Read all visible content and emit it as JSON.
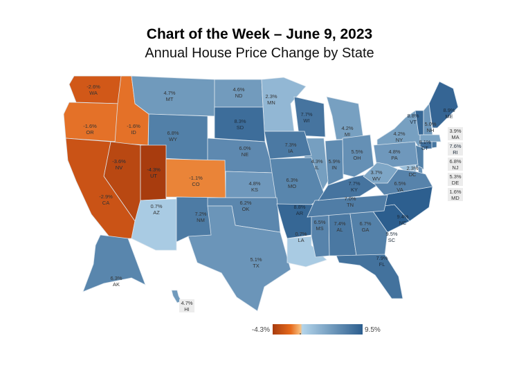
{
  "title": "Chart of the Week – June 9, 2023",
  "subtitle": "Annual House Price Change by State",
  "chart_data": {
    "type": "choropleth",
    "unit": "%",
    "legend": {
      "min_label": "-4.3%",
      "max_label": "9.5%",
      "min": -4.3,
      "max": 9.5,
      "placement": "bottom-center"
    },
    "colors": {
      "low": "#a83c0e",
      "mid_low": "#f3a14d",
      "mid_high": "#b3d4ea",
      "high": "#2c5e8e"
    },
    "states": [
      {
        "code": "WA",
        "value": -2.6,
        "label": "-2.6%"
      },
      {
        "code": "OR",
        "value": -1.6,
        "label": "-1.6%"
      },
      {
        "code": "ID",
        "value": -1.6,
        "label": "-1.6%"
      },
      {
        "code": "MT",
        "value": 4.7,
        "label": "4.7%"
      },
      {
        "code": "ND",
        "value": 4.6,
        "label": "4.6%"
      },
      {
        "code": "MN",
        "value": 2.3,
        "label": "2.3%"
      },
      {
        "code": "WI",
        "value": 7.7,
        "label": "7.7%"
      },
      {
        "code": "MI",
        "value": 4.2,
        "label": "4.2%"
      },
      {
        "code": "NY",
        "value": 4.2,
        "label": "4.2%"
      },
      {
        "code": "VT",
        "value": 8.8,
        "label": "8.8%"
      },
      {
        "code": "NH",
        "value": 5.0,
        "label": "5.0%"
      },
      {
        "code": "ME",
        "value": 8.9,
        "label": "8.9%"
      },
      {
        "code": "MA",
        "value": 3.9,
        "label": "3.9%"
      },
      {
        "code": "RI",
        "value": 7.6,
        "label": "7.6%"
      },
      {
        "code": "CT",
        "value": 8.1,
        "label": "8.1%"
      },
      {
        "code": "NJ",
        "value": 6.8,
        "label": "6.8%"
      },
      {
        "code": "DE",
        "value": 5.3,
        "label": "5.3%"
      },
      {
        "code": "MD",
        "value": 1.6,
        "label": "1.6%"
      },
      {
        "code": "DC",
        "value": 2.3,
        "label": "2.3%"
      },
      {
        "code": "PA",
        "value": 4.8,
        "label": "4.8%"
      },
      {
        "code": "OH",
        "value": 5.5,
        "label": "5.5%"
      },
      {
        "code": "IN",
        "value": 5.9,
        "label": "5.9%"
      },
      {
        "code": "IL",
        "value": 4.3,
        "label": "4.3%"
      },
      {
        "code": "IA",
        "value": 7.3,
        "label": "7.3%"
      },
      {
        "code": "SD",
        "value": 8.3,
        "label": "8.3%"
      },
      {
        "code": "WY",
        "value": 6.8,
        "label": "6.8%"
      },
      {
        "code": "NE",
        "value": 6.0,
        "label": "6.0%"
      },
      {
        "code": "NV",
        "value": -3.6,
        "label": "-3.6%"
      },
      {
        "code": "UT",
        "value": -4.3,
        "label": "-4.3%"
      },
      {
        "code": "CO",
        "value": -1.1,
        "label": "-1.1%"
      },
      {
        "code": "CA",
        "value": -2.9,
        "label": "-2.9%"
      },
      {
        "code": "AZ",
        "value": 0.7,
        "label": "0.7%"
      },
      {
        "code": "NM",
        "value": 7.2,
        "label": "7.2%"
      },
      {
        "code": "KS",
        "value": 4.8,
        "label": "4.8%"
      },
      {
        "code": "MO",
        "value": 6.3,
        "label": "6.3%"
      },
      {
        "code": "OK",
        "value": 6.2,
        "label": "6.2%"
      },
      {
        "code": "TX",
        "value": 5.1,
        "label": "5.1%"
      },
      {
        "code": "AR",
        "value": 8.8,
        "label": "8.8%"
      },
      {
        "code": "LA",
        "value": 0.7,
        "label": "0.7%"
      },
      {
        "code": "MS",
        "value": 6.5,
        "label": "6.5%"
      },
      {
        "code": "AL",
        "value": 7.4,
        "label": "7.4%"
      },
      {
        "code": "GA",
        "value": 6.7,
        "label": "6.7%"
      },
      {
        "code": "FL",
        "value": 7.9,
        "label": "7.9%"
      },
      {
        "code": "SC",
        "value": 9.5,
        "label": "9.5%"
      },
      {
        "code": "NC",
        "value": 9.4,
        "label": "9.4%"
      },
      {
        "code": "TN",
        "value": 7.0,
        "label": "7.0%"
      },
      {
        "code": "KY",
        "value": 7.7,
        "label": "7.7%"
      },
      {
        "code": "WV",
        "value": 3.7,
        "label": "3.7%"
      },
      {
        "code": "VA",
        "value": 6.5,
        "label": "6.5%"
      },
      {
        "code": "AK",
        "value": 6.3,
        "label": "6.3%"
      },
      {
        "code": "HI",
        "value": 4.7,
        "label": "4.7%"
      }
    ]
  }
}
